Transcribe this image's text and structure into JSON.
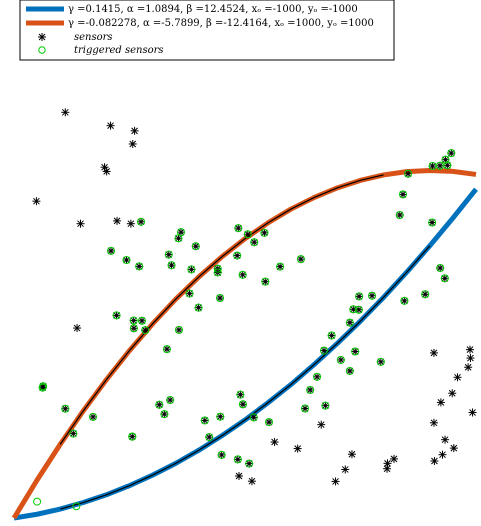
{
  "chart_data": {
    "type": "scatter",
    "title": "",
    "xlabel": "",
    "ylabel": "",
    "xlim": [
      -1000,
      1000
    ],
    "ylim": [
      -1000,
      1000
    ],
    "grid": false,
    "legend_position": "top-left",
    "colors": {
      "curve_1": "#0072BD",
      "curve_2": "#D95319",
      "center_line": "#000000",
      "sensor": "#000000",
      "triggered": "#00cc00"
    },
    "series": [
      {
        "name": "γ =0.1415, α =1.0894, β =12.4524, xₒ =-1000, yₒ =-1000",
        "kind": "curve"
      },
      {
        "name": "γ =-0.082278, α =-5.7899, β =-12.4164, xₒ =1000, yₒ =1000",
        "kind": "curve"
      },
      {
        "name": "sensors",
        "kind": "markers",
        "marker": "asterisk"
      },
      {
        "name": "triggered sensors",
        "kind": "markers",
        "marker": "circle"
      }
    ],
    "curves": [
      {
        "x": [
          -1000,
          -900,
          -800,
          -700,
          -600,
          -500,
          -400,
          -300,
          -200,
          -100,
          0,
          100,
          200,
          300,
          400,
          500,
          600,
          700,
          800,
          900,
          1000
        ],
        "y": [
          -1000,
          -984,
          -962,
          -934,
          -901,
          -862,
          -817,
          -767,
          -711,
          -649,
          -582,
          -508,
          -430,
          -345,
          -255,
          -160,
          -59,
          48,
          161,
          279,
          402
        ]
      },
      {
        "x": [
          -1000,
          -900,
          -800,
          -700,
          -600,
          -500,
          -400,
          -300,
          -200,
          -100,
          0,
          100,
          200,
          300,
          400,
          500,
          600,
          700,
          800,
          900,
          1000
        ],
        "y": [
          -1000,
          -838,
          -686,
          -543,
          -410,
          -286,
          -172,
          -67,
          28,
          114,
          191,
          259,
          318,
          367,
          408,
          440,
          463,
          477,
          482,
          478,
          465
        ]
      }
    ],
    "center_lines": [
      {
        "x": [
          -850,
          820
        ],
        "y": [
          -976,
          255
        ]
      },
      {
        "x": [
          -850,
          600
        ],
        "y": [
          -778,
          448
        ]
      }
    ],
    "sensors": [
      [
        -778,
        730
      ],
      [
        -582,
        673
      ],
      [
        -478,
        651
      ],
      [
        -486,
        595
      ],
      [
        -608,
        496
      ],
      [
        -599,
        478
      ],
      [
        -903,
        351
      ],
      [
        -712,
        255
      ],
      [
        -554,
        267
      ],
      [
        -494,
        255
      ],
      [
        -450,
        263
      ],
      [
        -580,
        139
      ],
      [
        -513,
        100
      ],
      [
        -458,
        73
      ],
      [
        -330,
        123
      ],
      [
        -277,
        219
      ],
      [
        -232,
        60
      ],
      [
        -118,
        63
      ],
      [
        -34,
        119
      ],
      [
        40,
        176
      ],
      [
        12,
        210
      ],
      [
        -29,
        236
      ],
      [
        84,
        216
      ],
      [
        -10,
        37
      ],
      [
        88,
        8
      ],
      [
        152,
        72
      ],
      [
        242,
        104
      ],
      [
        -213,
        159
      ],
      [
        -318,
        78
      ],
      [
        -288,
        193
      ],
      [
        -240,
        -43
      ],
      [
        -201,
        -103
      ],
      [
        -108,
        -62
      ],
      [
        -118,
        47
      ],
      [
        -556,
        -136
      ],
      [
        -482,
        -158
      ],
      [
        -446,
        -159
      ],
      [
        -481,
        -191
      ],
      [
        -432,
        -199
      ],
      [
        -286,
        -198
      ],
      [
        -338,
        -280
      ],
      [
        -727,
        -190
      ],
      [
        -874,
        -438
      ],
      [
        -876,
        -444
      ],
      [
        -778,
        -534
      ],
      [
        -743,
        -640
      ],
      [
        -658,
        -569
      ],
      [
        -488,
        -653
      ],
      [
        -349,
        -557
      ],
      [
        -371,
        -517
      ],
      [
        -324,
        -497
      ],
      [
        -174,
        -584
      ],
      [
        -107,
        -568
      ],
      [
        -20,
        -474
      ],
      [
        -9,
        -515
      ],
      [
        38,
        -571
      ],
      [
        104,
        -591
      ],
      [
        128,
        -676
      ],
      [
        -155,
        -655
      ],
      [
        -101,
        -731
      ],
      [
        -31,
        -750
      ],
      [
        -26,
        -821
      ],
      [
        18,
        -768
      ],
      [
        30,
        -843
      ],
      [
        260,
        -533
      ],
      [
        348,
        -521
      ],
      [
        454,
        -373
      ],
      [
        415,
        -326
      ],
      [
        477,
        -290
      ],
      [
        588,
        -334
      ],
      [
        818,
        -296
      ],
      [
        976,
        -318
      ],
      [
        974,
        -282
      ],
      [
        966,
        -357
      ],
      [
        920,
        -400
      ],
      [
        897,
        -468
      ],
      [
        848,
        -507
      ],
      [
        818,
        -594
      ],
      [
        866,
        -666
      ],
      [
        985,
        -550
      ],
      [
        904,
        -702
      ],
      [
        855,
        -730
      ],
      [
        820,
        -757
      ],
      [
        645,
        -748
      ],
      [
        617,
        -767
      ],
      [
        615,
        -790
      ],
      [
        463,
        -728
      ],
      [
        434,
        -793
      ],
      [
        392,
        -844
      ],
      [
        228,
        -704
      ],
      [
        330,
        -602
      ],
      [
        282,
        -454
      ],
      [
        312,
        -398
      ],
      [
        342,
        -286
      ],
      [
        375,
        -222
      ],
      [
        454,
        -167
      ],
      [
        469,
        -110
      ],
      [
        493,
        -112
      ],
      [
        494,
        -55
      ],
      [
        550,
        -52
      ],
      [
        690,
        -74
      ],
      [
        780,
        -46
      ],
      [
        865,
        22
      ],
      [
        845,
        66
      ],
      [
        810,
        260
      ],
      [
        670,
        292
      ],
      [
        684,
        380
      ],
      [
        706,
        468
      ],
      [
        812,
        501
      ],
      [
        844,
        502
      ],
      [
        876,
        504
      ],
      [
        893,
        556
      ],
      [
        868,
        528
      ]
    ],
    "triggered": [
      [
        -450,
        263
      ],
      [
        -580,
        139
      ],
      [
        -513,
        100
      ],
      [
        -458,
        73
      ],
      [
        -330,
        123
      ],
      [
        -277,
        219
      ],
      [
        -232,
        60
      ],
      [
        -118,
        63
      ],
      [
        -34,
        119
      ],
      [
        40,
        176
      ],
      [
        12,
        210
      ],
      [
        -29,
        236
      ],
      [
        84,
        216
      ],
      [
        -10,
        37
      ],
      [
        88,
        8
      ],
      [
        152,
        72
      ],
      [
        242,
        104
      ],
      [
        -213,
        159
      ],
      [
        -318,
        78
      ],
      [
        -288,
        193
      ],
      [
        -240,
        -43
      ],
      [
        -201,
        -103
      ],
      [
        -108,
        -62
      ],
      [
        -118,
        47
      ],
      [
        -556,
        -136
      ],
      [
        -482,
        -158
      ],
      [
        -446,
        -159
      ],
      [
        -481,
        -191
      ],
      [
        -432,
        -199
      ],
      [
        -286,
        -198
      ],
      [
        -338,
        -280
      ],
      [
        -874,
        -438
      ],
      [
        -876,
        -444
      ],
      [
        -778,
        -534
      ],
      [
        -743,
        -640
      ],
      [
        -658,
        -569
      ],
      [
        -488,
        -653
      ],
      [
        -349,
        -557
      ],
      [
        -371,
        -517
      ],
      [
        -324,
        -497
      ],
      [
        -174,
        -584
      ],
      [
        -107,
        -568
      ],
      [
        -20,
        -474
      ],
      [
        -9,
        -515
      ],
      [
        38,
        -571
      ],
      [
        104,
        -591
      ],
      [
        -155,
        -655
      ],
      [
        -101,
        -731
      ],
      [
        -31,
        -750
      ],
      [
        18,
        -768
      ],
      [
        -488,
        -653
      ],
      [
        -900,
        -930
      ],
      [
        -730,
        -950
      ],
      [
        260,
        -533
      ],
      [
        348,
        -521
      ],
      [
        454,
        -373
      ],
      [
        415,
        -326
      ],
      [
        477,
        -290
      ],
      [
        588,
        -334
      ],
      [
        690,
        -74
      ],
      [
        780,
        -46
      ],
      [
        865,
        22
      ],
      [
        845,
        66
      ],
      [
        810,
        260
      ],
      [
        670,
        292
      ],
      [
        684,
        380
      ],
      [
        706,
        468
      ],
      [
        812,
        501
      ],
      [
        844,
        502
      ],
      [
        876,
        504
      ],
      [
        893,
        556
      ],
      [
        868,
        528
      ],
      [
        282,
        -454
      ],
      [
        312,
        -398
      ],
      [
        342,
        -286
      ],
      [
        375,
        -222
      ],
      [
        454,
        -167
      ],
      [
        469,
        -110
      ],
      [
        493,
        -112
      ],
      [
        494,
        -55
      ],
      [
        550,
        -52
      ]
    ]
  }
}
